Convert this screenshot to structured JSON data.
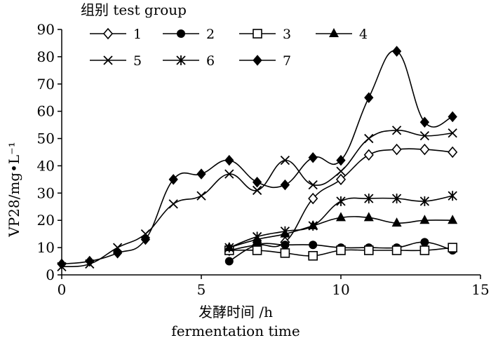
{
  "chart_data": {
    "type": "line",
    "title": "",
    "legend_title": "组别 test group",
    "legend_position": "top-left",
    "xlabel_lines": [
      "发酵时间 /h",
      "fermentation time"
    ],
    "ylabel": "VP28/mg•L⁻¹",
    "xlim": [
      0,
      15
    ],
    "ylim": [
      0,
      90
    ],
    "x_ticks": [
      0,
      5,
      10,
      15
    ],
    "y_ticks": [
      0,
      10,
      20,
      30,
      40,
      50,
      60,
      70,
      80,
      90
    ],
    "grid": false,
    "series": [
      {
        "name": "1",
        "marker": "diamond-open",
        "x": [
          6,
          7,
          8,
          9,
          10,
          11,
          12,
          13,
          14
        ],
        "y": [
          9,
          11,
          12,
          28,
          35,
          44,
          46,
          46,
          45
        ]
      },
      {
        "name": "2",
        "marker": "circle-filled",
        "x": [
          6,
          7,
          8,
          9,
          10,
          11,
          12,
          13,
          14
        ],
        "y": [
          5,
          11,
          11,
          11,
          10,
          10,
          10,
          12,
          9
        ]
      },
      {
        "name": "3",
        "marker": "square-open",
        "x": [
          6,
          7,
          8,
          9,
          10,
          11,
          12,
          13,
          14
        ],
        "y": [
          9,
          9,
          8,
          7,
          9,
          9,
          9,
          9,
          10
        ]
      },
      {
        "name": "4",
        "marker": "triangle-filled",
        "x": [
          6,
          7,
          8,
          9,
          10,
          11,
          12,
          13,
          14
        ],
        "y": [
          10,
          13,
          15,
          18,
          21,
          21,
          19,
          20,
          20
        ]
      },
      {
        "name": "5",
        "marker": "x",
        "x": [
          0,
          1,
          2,
          3,
          4,
          5,
          6,
          7,
          8,
          9,
          10,
          11,
          12,
          13,
          14
        ],
        "y": [
          3,
          4,
          10,
          15,
          26,
          29,
          37,
          31,
          42,
          33,
          38,
          50,
          53,
          51,
          52
        ]
      },
      {
        "name": "6",
        "marker": "asterisk",
        "x": [
          6,
          7,
          8,
          9,
          10,
          11,
          12,
          13,
          14
        ],
        "y": [
          10,
          14,
          16,
          18,
          27,
          28,
          28,
          27,
          29
        ]
      },
      {
        "name": "7",
        "marker": "diamond-filled",
        "x": [
          0,
          1,
          2,
          3,
          4,
          5,
          6,
          7,
          8,
          9,
          10,
          11,
          12,
          13,
          14
        ],
        "y": [
          4,
          5,
          8,
          13,
          35,
          37,
          42,
          34,
          33,
          43,
          42,
          65,
          82,
          56,
          58
        ]
      }
    ]
  }
}
